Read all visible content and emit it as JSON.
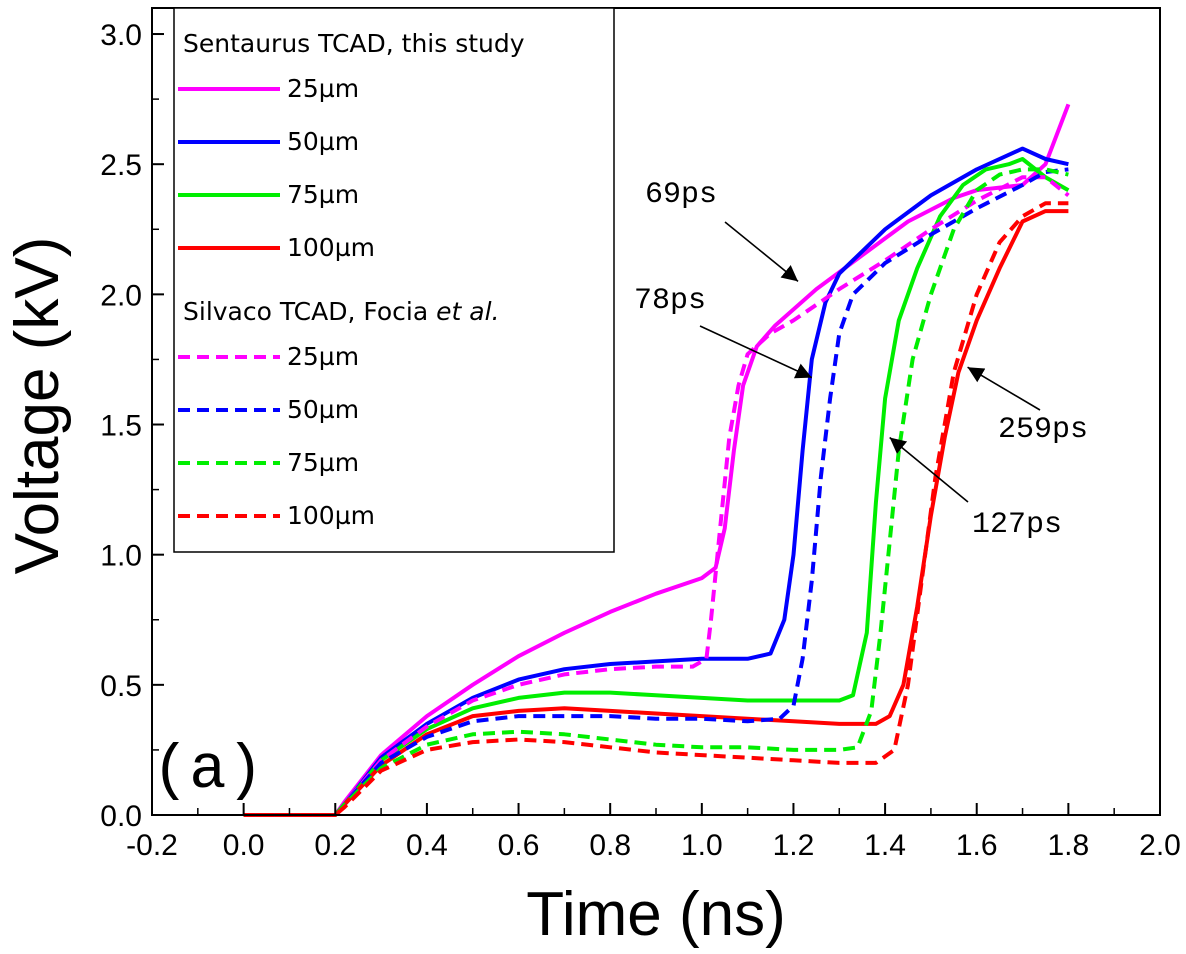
{
  "chart_data": {
    "type": "line",
    "title": "",
    "panel_label": "(a)",
    "xlabel": "Time (ns)",
    "ylabel": "Voltage (kV)",
    "xlim": [
      -0.2,
      2.0
    ],
    "ylim": [
      0.0,
      3.1
    ],
    "x_ticks": [
      "-0.2",
      "0.0",
      "0.2",
      "0.4",
      "0.6",
      "0.8",
      "1.0",
      "1.2",
      "1.4",
      "1.6",
      "1.8",
      "2.0"
    ],
    "x_tick_values": [
      -0.2,
      0.0,
      0.2,
      0.4,
      0.6,
      0.8,
      1.0,
      1.2,
      1.4,
      1.6,
      1.8,
      2.0
    ],
    "y_ticks": [
      "0.0",
      "0.5",
      "1.0",
      "1.5",
      "2.0",
      "2.5",
      "3.0"
    ],
    "y_tick_values": [
      0.0,
      0.5,
      1.0,
      1.5,
      2.0,
      2.5,
      3.0
    ],
    "legend": {
      "placement": "top-left",
      "group1_title": "Sentaurus TCAD, this study",
      "group2_title_plain": "Silvaco TCAD, Focia ",
      "group2_title_italic": "et al."
    },
    "series": [
      {
        "name": "25µm",
        "group": "Sentaurus",
        "color": "#ff00ff",
        "dash": "solid",
        "points": [
          [
            0.0,
            0.0
          ],
          [
            0.15,
            0.0
          ],
          [
            0.2,
            0.0
          ],
          [
            0.22,
            0.05
          ],
          [
            0.3,
            0.23
          ],
          [
            0.4,
            0.38
          ],
          [
            0.5,
            0.5
          ],
          [
            0.6,
            0.61
          ],
          [
            0.7,
            0.7
          ],
          [
            0.8,
            0.78
          ],
          [
            0.9,
            0.85
          ],
          [
            1.0,
            0.91
          ],
          [
            1.03,
            0.95
          ],
          [
            1.05,
            1.1
          ],
          [
            1.07,
            1.4
          ],
          [
            1.09,
            1.65
          ],
          [
            1.12,
            1.8
          ],
          [
            1.16,
            1.88
          ],
          [
            1.25,
            2.02
          ],
          [
            1.35,
            2.15
          ],
          [
            1.45,
            2.28
          ],
          [
            1.55,
            2.37
          ],
          [
            1.6,
            2.4
          ],
          [
            1.65,
            2.41
          ],
          [
            1.7,
            2.42
          ],
          [
            1.75,
            2.5
          ],
          [
            1.8,
            2.73
          ]
        ]
      },
      {
        "name": "50µm",
        "group": "Sentaurus",
        "color": "#0000ff",
        "dash": "solid",
        "points": [
          [
            0.0,
            0.0
          ],
          [
            0.15,
            0.0
          ],
          [
            0.2,
            0.0
          ],
          [
            0.22,
            0.04
          ],
          [
            0.3,
            0.22
          ],
          [
            0.4,
            0.35
          ],
          [
            0.5,
            0.45
          ],
          [
            0.6,
            0.52
          ],
          [
            0.7,
            0.56
          ],
          [
            0.8,
            0.58
          ],
          [
            0.9,
            0.59
          ],
          [
            1.0,
            0.6
          ],
          [
            1.1,
            0.6
          ],
          [
            1.15,
            0.62
          ],
          [
            1.18,
            0.75
          ],
          [
            1.2,
            1.0
          ],
          [
            1.22,
            1.4
          ],
          [
            1.24,
            1.75
          ],
          [
            1.27,
            1.97
          ],
          [
            1.3,
            2.08
          ],
          [
            1.4,
            2.25
          ],
          [
            1.5,
            2.38
          ],
          [
            1.6,
            2.48
          ],
          [
            1.7,
            2.56
          ],
          [
            1.75,
            2.52
          ],
          [
            1.8,
            2.5
          ]
        ]
      },
      {
        "name": "75µm",
        "group": "Sentaurus",
        "color": "#00ee00",
        "dash": "solid",
        "points": [
          [
            0.0,
            0.0
          ],
          [
            0.15,
            0.0
          ],
          [
            0.2,
            0.0
          ],
          [
            0.22,
            0.04
          ],
          [
            0.3,
            0.21
          ],
          [
            0.4,
            0.33
          ],
          [
            0.5,
            0.41
          ],
          [
            0.6,
            0.45
          ],
          [
            0.7,
            0.47
          ],
          [
            0.8,
            0.47
          ],
          [
            0.9,
            0.46
          ],
          [
            1.0,
            0.45
          ],
          [
            1.1,
            0.44
          ],
          [
            1.2,
            0.44
          ],
          [
            1.3,
            0.44
          ],
          [
            1.33,
            0.46
          ],
          [
            1.36,
            0.7
          ],
          [
            1.38,
            1.2
          ],
          [
            1.4,
            1.6
          ],
          [
            1.43,
            1.9
          ],
          [
            1.47,
            2.1
          ],
          [
            1.52,
            2.3
          ],
          [
            1.57,
            2.42
          ],
          [
            1.62,
            2.48
          ],
          [
            1.67,
            2.5
          ],
          [
            1.7,
            2.52
          ],
          [
            1.75,
            2.45
          ],
          [
            1.8,
            2.4
          ]
        ]
      },
      {
        "name": "100µm",
        "group": "Sentaurus",
        "color": "#ff0000",
        "dash": "solid",
        "points": [
          [
            0.0,
            0.0
          ],
          [
            0.15,
            0.0
          ],
          [
            0.2,
            0.0
          ],
          [
            0.22,
            0.04
          ],
          [
            0.3,
            0.19
          ],
          [
            0.4,
            0.31
          ],
          [
            0.5,
            0.38
          ],
          [
            0.6,
            0.4
          ],
          [
            0.7,
            0.41
          ],
          [
            0.8,
            0.4
          ],
          [
            0.9,
            0.39
          ],
          [
            1.0,
            0.38
          ],
          [
            1.1,
            0.37
          ],
          [
            1.2,
            0.36
          ],
          [
            1.3,
            0.35
          ],
          [
            1.38,
            0.35
          ],
          [
            1.41,
            0.38
          ],
          [
            1.44,
            0.5
          ],
          [
            1.47,
            0.8
          ],
          [
            1.5,
            1.15
          ],
          [
            1.53,
            1.45
          ],
          [
            1.56,
            1.7
          ],
          [
            1.6,
            1.9
          ],
          [
            1.65,
            2.1
          ],
          [
            1.7,
            2.28
          ],
          [
            1.75,
            2.32
          ],
          [
            1.8,
            2.32
          ]
        ]
      },
      {
        "name": "25µm",
        "group": "Silvaco",
        "color": "#ff00ff",
        "dash": "dashed",
        "points": [
          [
            0.0,
            0.0
          ],
          [
            0.15,
            0.0
          ],
          [
            0.2,
            0.0
          ],
          [
            0.22,
            0.04
          ],
          [
            0.3,
            0.21
          ],
          [
            0.4,
            0.34
          ],
          [
            0.5,
            0.44
          ],
          [
            0.6,
            0.5
          ],
          [
            0.7,
            0.54
          ],
          [
            0.8,
            0.56
          ],
          [
            0.9,
            0.57
          ],
          [
            0.98,
            0.57
          ],
          [
            1.01,
            0.6
          ],
          [
            1.02,
            0.75
          ],
          [
            1.04,
            1.1
          ],
          [
            1.06,
            1.45
          ],
          [
            1.08,
            1.65
          ],
          [
            1.1,
            1.77
          ],
          [
            1.15,
            1.85
          ],
          [
            1.2,
            1.9
          ],
          [
            1.3,
            2.02
          ],
          [
            1.4,
            2.13
          ],
          [
            1.5,
            2.25
          ],
          [
            1.6,
            2.36
          ],
          [
            1.7,
            2.45
          ],
          [
            1.75,
            2.45
          ],
          [
            1.8,
            2.38
          ]
        ]
      },
      {
        "name": "50µm",
        "group": "Silvaco",
        "color": "#0000ff",
        "dash": "dashed",
        "points": [
          [
            0.0,
            0.0
          ],
          [
            0.15,
            0.0
          ],
          [
            0.2,
            0.0
          ],
          [
            0.22,
            0.04
          ],
          [
            0.3,
            0.2
          ],
          [
            0.4,
            0.3
          ],
          [
            0.5,
            0.36
          ],
          [
            0.6,
            0.38
          ],
          [
            0.7,
            0.38
          ],
          [
            0.8,
            0.38
          ],
          [
            0.9,
            0.37
          ],
          [
            1.0,
            0.37
          ],
          [
            1.1,
            0.36
          ],
          [
            1.17,
            0.37
          ],
          [
            1.2,
            0.42
          ],
          [
            1.22,
            0.6
          ],
          [
            1.24,
            0.9
          ],
          [
            1.26,
            1.3
          ],
          [
            1.28,
            1.6
          ],
          [
            1.3,
            1.85
          ],
          [
            1.33,
            2.0
          ],
          [
            1.4,
            2.12
          ],
          [
            1.5,
            2.23
          ],
          [
            1.6,
            2.33
          ],
          [
            1.7,
            2.42
          ],
          [
            1.75,
            2.47
          ],
          [
            1.8,
            2.48
          ]
        ]
      },
      {
        "name": "75µm",
        "group": "Silvaco",
        "color": "#00ee00",
        "dash": "dashed",
        "points": [
          [
            0.0,
            0.0
          ],
          [
            0.15,
            0.0
          ],
          [
            0.2,
            0.0
          ],
          [
            0.22,
            0.04
          ],
          [
            0.3,
            0.18
          ],
          [
            0.4,
            0.27
          ],
          [
            0.5,
            0.31
          ],
          [
            0.6,
            0.32
          ],
          [
            0.7,
            0.31
          ],
          [
            0.8,
            0.29
          ],
          [
            0.9,
            0.27
          ],
          [
            1.0,
            0.26
          ],
          [
            1.1,
            0.26
          ],
          [
            1.2,
            0.25
          ],
          [
            1.3,
            0.25
          ],
          [
            1.34,
            0.26
          ],
          [
            1.37,
            0.4
          ],
          [
            1.39,
            0.7
          ],
          [
            1.41,
            1.05
          ],
          [
            1.43,
            1.4
          ],
          [
            1.46,
            1.75
          ],
          [
            1.5,
            2.0
          ],
          [
            1.55,
            2.25
          ],
          [
            1.6,
            2.4
          ],
          [
            1.65,
            2.46
          ],
          [
            1.7,
            2.48
          ],
          [
            1.75,
            2.48
          ],
          [
            1.8,
            2.46
          ]
        ]
      },
      {
        "name": "100µm",
        "group": "Silvaco",
        "color": "#ff0000",
        "dash": "dashed",
        "points": [
          [
            0.0,
            0.0
          ],
          [
            0.15,
            0.0
          ],
          [
            0.2,
            0.0
          ],
          [
            0.22,
            0.03
          ],
          [
            0.3,
            0.17
          ],
          [
            0.4,
            0.25
          ],
          [
            0.5,
            0.28
          ],
          [
            0.6,
            0.29
          ],
          [
            0.7,
            0.28
          ],
          [
            0.8,
            0.26
          ],
          [
            0.9,
            0.24
          ],
          [
            1.0,
            0.23
          ],
          [
            1.1,
            0.22
          ],
          [
            1.2,
            0.21
          ],
          [
            1.3,
            0.2
          ],
          [
            1.38,
            0.2
          ],
          [
            1.42,
            0.25
          ],
          [
            1.45,
            0.5
          ],
          [
            1.48,
            0.9
          ],
          [
            1.51,
            1.3
          ],
          [
            1.55,
            1.7
          ],
          [
            1.6,
            2.0
          ],
          [
            1.65,
            2.2
          ],
          [
            1.7,
            2.3
          ],
          [
            1.75,
            2.35
          ],
          [
            1.8,
            2.35
          ]
        ]
      }
    ],
    "annotations": [
      {
        "text": "69ps",
        "tip": [
          1.21,
          2.05
        ]
      },
      {
        "text": "78ps",
        "tip": [
          1.24,
          1.68
        ]
      },
      {
        "text": "127ps",
        "tip": [
          1.41,
          1.45
        ]
      },
      {
        "text": "259ps",
        "tip": [
          1.58,
          1.72
        ]
      }
    ]
  }
}
